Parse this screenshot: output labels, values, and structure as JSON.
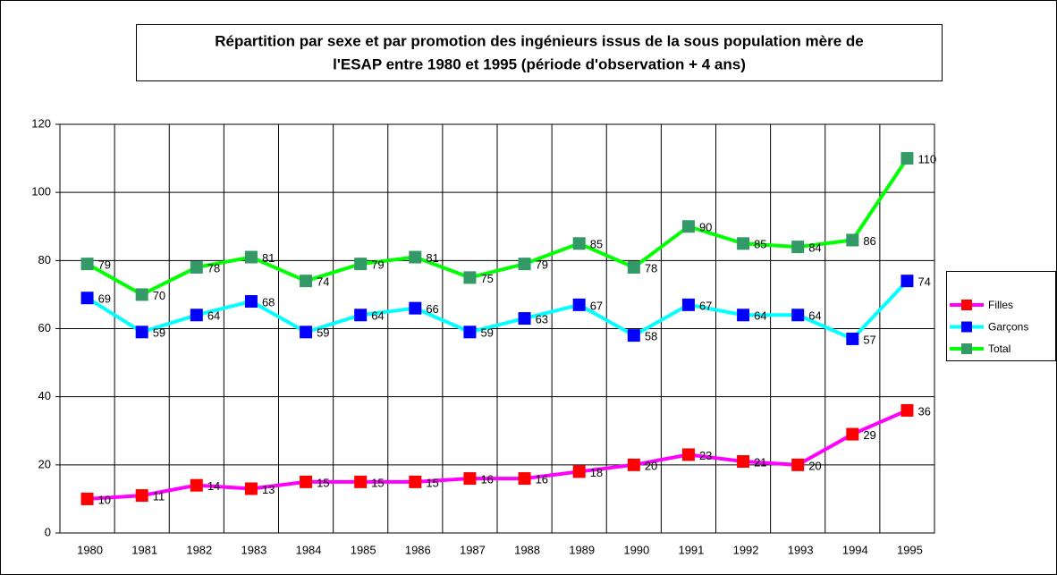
{
  "chart_data": {
    "type": "line",
    "title": [
      "Répartition par sexe et par promotion des ingénieurs issus de la sous population mère de",
      "l'ESAP entre 1980 et 1995 (période d'observation + 4 ans)"
    ],
    "categories": [
      "1980",
      "1981",
      "1982",
      "1983",
      "1984",
      "1985",
      "1986",
      "1987",
      "1988",
      "1989",
      "1990",
      "1991",
      "1992",
      "1993",
      "1994",
      "1995"
    ],
    "series": [
      {
        "name": "Filles",
        "color": "#ff00ff",
        "marker_color": "#ff0000",
        "values": [
          10,
          11,
          14,
          13,
          15,
          15,
          15,
          16,
          16,
          18,
          20,
          23,
          21,
          20,
          29,
          36
        ]
      },
      {
        "name": "Garçons",
        "color": "#00ffff",
        "marker_color": "#0000ff",
        "values": [
          69,
          59,
          64,
          68,
          59,
          64,
          66,
          59,
          63,
          67,
          58,
          67,
          64,
          64,
          57,
          74
        ]
      },
      {
        "name": "Total",
        "color": "#00ff00",
        "marker_color": "#339966",
        "values": [
          79,
          70,
          78,
          81,
          74,
          79,
          81,
          75,
          79,
          85,
          78,
          90,
          85,
          84,
          86,
          110
        ]
      }
    ],
    "ylim": [
      0,
      120
    ],
    "yticks": [
      0,
      20,
      40,
      60,
      80,
      100,
      120
    ],
    "grid": true,
    "legend": "right"
  }
}
